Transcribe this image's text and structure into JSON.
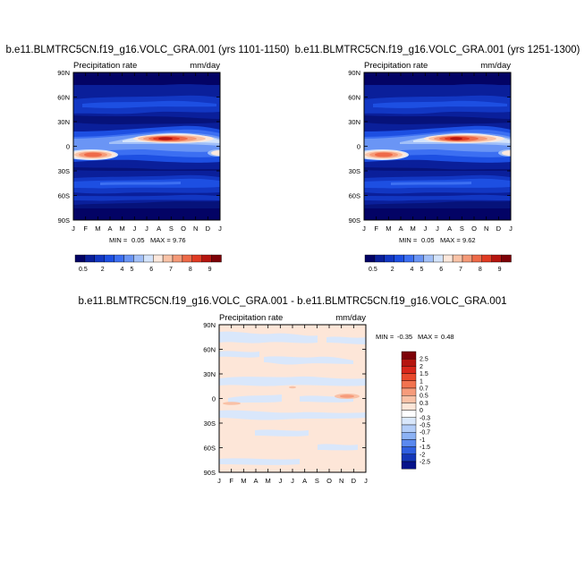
{
  "chart_data": [
    {
      "type": "heatmap",
      "title": "b.e11.BLMTRC5CN.f19_g16.VOLC_GRA.001 (yrs 1101-1150)",
      "left_label": "Precipitation rate",
      "units_label": "mm/day",
      "x_ticks": [
        "J",
        "F",
        "M",
        "A",
        "M",
        "J",
        "J",
        "A",
        "S",
        "O",
        "N",
        "D",
        "J"
      ],
      "y_ticks": [
        "90N",
        "60N",
        "30N",
        "0",
        "30S",
        "60S",
        "90S"
      ],
      "min_label": "MIN =",
      "min_value": "0.05",
      "max_label": "MAX =",
      "max_value": "9.76",
      "colorbar_labels": [
        "0.5",
        "2",
        "4",
        "5",
        "6",
        "7",
        "8",
        "9"
      ],
      "colorbar_colors": [
        "#030365",
        "#0a1f9a",
        "#1237c3",
        "#1d4fe2",
        "#3c6ff2",
        "#6a95f5",
        "#a2c0f8",
        "#d4e4fb",
        "#fde8dc",
        "#f9c3a7",
        "#f59a78",
        "#ee6a48",
        "#e03b23",
        "#b5150f",
        "#7d0208"
      ]
    },
    {
      "type": "heatmap",
      "title": "b.e11.BLMTRC5CN.f19_g16.VOLC_GRA.001 (yrs 1251-1300)",
      "left_label": "Precipitation rate",
      "units_label": "mm/day",
      "x_ticks": [
        "J",
        "F",
        "M",
        "A",
        "M",
        "J",
        "J",
        "A",
        "S",
        "O",
        "N",
        "D",
        "J"
      ],
      "y_ticks": [
        "90N",
        "60N",
        "30N",
        "0",
        "30S",
        "60S",
        "90S"
      ],
      "min_label": "MIN =",
      "min_value": "0.05",
      "max_label": "MAX =",
      "max_value": "9.62",
      "colorbar_labels": [
        "0.5",
        "2",
        "4",
        "5",
        "6",
        "7",
        "8",
        "9"
      ],
      "colorbar_colors": [
        "#030365",
        "#0a1f9a",
        "#1237c3",
        "#1d4fe2",
        "#3c6ff2",
        "#6a95f5",
        "#a2c0f8",
        "#d4e4fb",
        "#fde8dc",
        "#f9c3a7",
        "#f59a78",
        "#ee6a48",
        "#e03b23",
        "#b5150f",
        "#7d0208"
      ]
    },
    {
      "type": "heatmap",
      "title": "b.e11.BLMTRC5CN.f19_g16.VOLC_GRA.001 - b.e11.BLMTRC5CN.f19_g16.VOLC_GRA.001",
      "left_label": "Precipitation rate",
      "units_label": "mm/day",
      "x_ticks": [
        "J",
        "F",
        "M",
        "A",
        "M",
        "J",
        "J",
        "A",
        "S",
        "O",
        "N",
        "D",
        "J"
      ],
      "y_ticks": [
        "90N",
        "60N",
        "30N",
        "0",
        "30S",
        "60S",
        "90S"
      ],
      "min_label": "MIN =",
      "min_value": "-0.35",
      "max_label": "MAX =",
      "max_value": "0.48",
      "colorbar_labels": [
        "2.5",
        "2",
        "1.5",
        "1",
        "0.7",
        "0.5",
        "0.3",
        "0",
        "-0.3",
        "-0.5",
        "-0.7",
        "-1",
        "-1.5",
        "-2",
        "-2.5"
      ],
      "colorbar_colors": [
        "#7d0208",
        "#b5150f",
        "#d8261a",
        "#e8492c",
        "#f2734f",
        "#f69b7b",
        "#f9c1a6",
        "#fde6d8",
        "#ffffff",
        "#d9e7fb",
        "#b3cdf8",
        "#8cb2f5",
        "#5a89ef",
        "#2f5fe0",
        "#1437b8",
        "#06138a"
      ]
    }
  ]
}
